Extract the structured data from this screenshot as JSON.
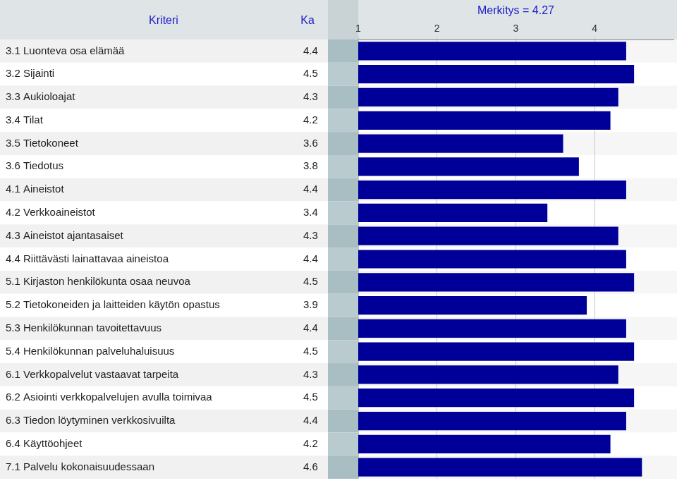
{
  "chart_data": {
    "type": "bar",
    "orientation": "horizontal",
    "title": "Merkitys = 4.27",
    "ylabel": "Kriteri",
    "value_header": "Ka",
    "categories": [
      "3.1 Luonteva osa elämää",
      "3.2 Sijainti",
      "3.3 Aukioloajat",
      "3.4 Tilat",
      "3.5 Tietokoneet",
      "3.6 Tiedotus",
      "4.1 Aineistot",
      "4.2 Verkkoaineistot",
      "4.3 Aineistot ajantasaiset",
      "4.4 Riittävästi lainattavaa aineistoa",
      "5.1 Kirjaston henkilökunta osaa neuvoa",
      "5.2 Tietokoneiden ja laitteiden käytön opastus",
      "5.3 Henkilökunnan tavoitettavuus",
      "5.4 Henkilökunnan palveluhaluisuus",
      "6.1 Verkkopalvelut vastaavat tarpeita",
      "6.2 Asiointi verkkopalvelujen avulla toimivaa",
      "6.3 Tiedon löytyminen verkkosivuilta",
      "6.4 Käyttöohjeet",
      "7.1 Palvelu kokonaisuudessaan"
    ],
    "values": [
      4.4,
      4.5,
      4.3,
      4.2,
      3.6,
      3.8,
      4.4,
      3.4,
      4.3,
      4.4,
      4.5,
      3.9,
      4.4,
      4.5,
      4.3,
      4.5,
      4.4,
      4.2,
      4.6
    ],
    "color": "#000099",
    "xlim": [
      1,
      5
    ],
    "xticks": [
      1,
      2,
      3,
      4
    ],
    "grid": true,
    "data_labels": true
  }
}
